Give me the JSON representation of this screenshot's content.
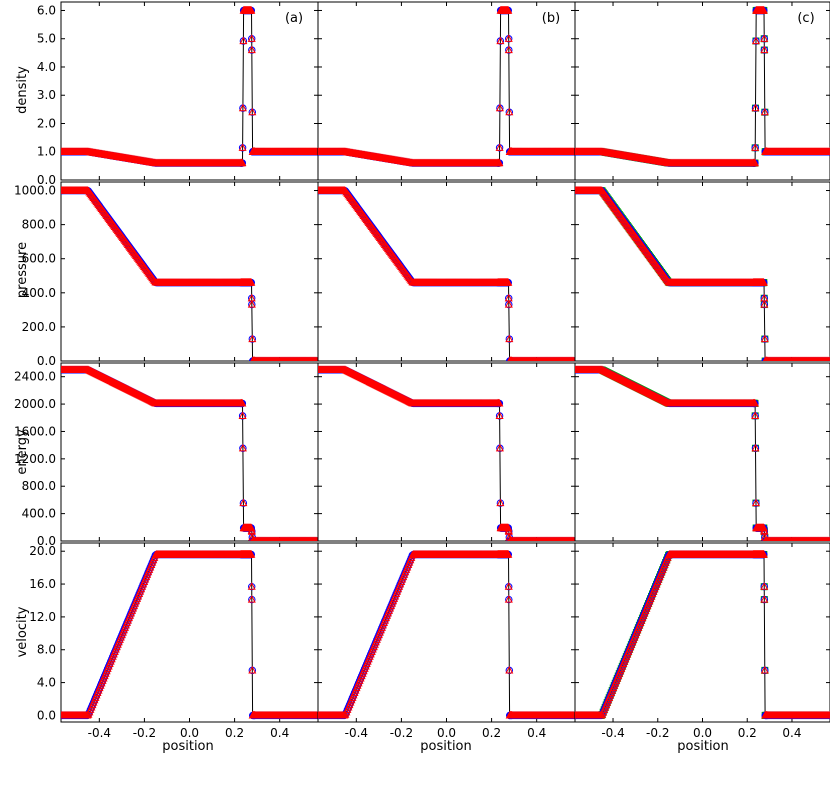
{
  "figure": {
    "xlabel": "position",
    "panel_tags": [
      "(a)",
      "(b)",
      "(c)"
    ],
    "row_labels": [
      "density",
      "pressure",
      "energy",
      "velocity"
    ]
  },
  "colors": {
    "exact": "#000000",
    "series_a": "#ff0000",
    "series_b": "#0000ff",
    "series_c": "#00aa00",
    "frame": "#000000"
  },
  "chart_data": {
    "type": "scatter",
    "description_of_layout": "4 rows (quantities) x 3 columns (cases a,b,c); shared x-axis",
    "x_range": [
      -0.57,
      0.57
    ],
    "x_ticks": [
      "-0.4",
      "-0.2",
      "0.0",
      "0.2",
      "0.4"
    ],
    "x_tick_values": [
      -0.4,
      -0.2,
      0.0,
      0.2,
      0.4
    ],
    "rows": [
      {
        "ylabel": "density",
        "ylim": [
          0,
          6.3
        ],
        "y_ticks": [
          "0.0",
          "1.0",
          "2.0",
          "3.0",
          "4.0",
          "5.0",
          "6.0"
        ],
        "y_tick_values": [
          0,
          1,
          2,
          3,
          4,
          5,
          6
        ],
        "profile": [
          [
            -0.57,
            1.0
          ],
          [
            -0.5,
            1.0
          ],
          [
            -0.45,
            1.0
          ],
          [
            -0.15,
            0.6
          ],
          [
            0.235,
            0.6
          ],
          [
            0.24,
            6.0
          ],
          [
            0.275,
            6.0
          ],
          [
            0.28,
            1.0
          ],
          [
            0.57,
            1.0
          ]
        ]
      },
      {
        "ylabel": "pressure",
        "ylim": [
          0,
          1050
        ],
        "y_ticks": [
          "0.0",
          "200.0",
          "400.0",
          "600.0",
          "800.0",
          "1000.0"
        ],
        "y_tick_values": [
          0,
          200,
          400,
          600,
          800,
          1000
        ],
        "profile": [
          [
            -0.57,
            1000
          ],
          [
            -0.5,
            1000
          ],
          [
            -0.45,
            1000
          ],
          [
            -0.15,
            460
          ],
          [
            0.275,
            460
          ],
          [
            0.28,
            0.01
          ],
          [
            0.57,
            0.01
          ]
        ]
      },
      {
        "ylabel": "energy",
        "ylim": [
          0,
          2600
        ],
        "y_ticks": [
          "0.0",
          "400.0",
          "800.0",
          "1200.0",
          "1600.0",
          "2000.0",
          "2400.0"
        ],
        "y_tick_values": [
          0,
          400,
          800,
          1200,
          1600,
          2000,
          2400
        ],
        "profile": [
          [
            -0.57,
            2500
          ],
          [
            -0.5,
            2500
          ],
          [
            -0.45,
            2500
          ],
          [
            -0.15,
            2010
          ],
          [
            0.235,
            2010
          ],
          [
            0.24,
            190
          ],
          [
            0.275,
            190
          ],
          [
            0.28,
            0
          ],
          [
            0.57,
            0
          ]
        ]
      },
      {
        "ylabel": "velocity",
        "ylim": [
          -0.8,
          21
        ],
        "y_ticks": [
          "0.0",
          "4.0",
          "8.0",
          "12.0",
          "16.0",
          "20.0"
        ],
        "y_tick_values": [
          0,
          4,
          8,
          12,
          16,
          20
        ],
        "profile": [
          [
            -0.57,
            0
          ],
          [
            -0.5,
            0
          ],
          [
            -0.45,
            0
          ],
          [
            -0.15,
            19.6
          ],
          [
            0.275,
            19.6
          ],
          [
            0.28,
            0
          ],
          [
            0.57,
            0
          ]
        ]
      }
    ],
    "series": [
      {
        "marker": "triangle",
        "color": "#ff0000"
      },
      {
        "marker": "circle",
        "color": "#0000ff"
      },
      {
        "marker": "square",
        "color": "#00aa00"
      }
    ]
  }
}
